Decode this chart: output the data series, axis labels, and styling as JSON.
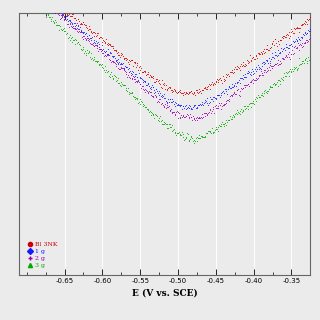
{
  "title": "",
  "xlabel": "E (V vs. SCE)",
  "xlim": [
    -0.71,
    -0.325
  ],
  "ylim_log": [
    -8.5,
    -1.0
  ],
  "x_ticks": [
    -0.65,
    -0.6,
    -0.55,
    -0.5,
    -0.45,
    -0.4,
    -0.35
  ],
  "background_color": "#ebebeb",
  "grid_color": "#ffffff",
  "legend_labels": [
    "Bl 3NK",
    "1 g",
    "2 g",
    "3 g"
  ],
  "legend_colors": [
    "#cc0000",
    "#1a1aff",
    "#9900aa",
    "#00aa00"
  ],
  "curves": [
    {
      "label": "Bl 3NK",
      "E_corr": -0.49,
      "log_icorr": -3.6,
      "ba": 0.068,
      "bc": 0.06,
      "color": "#cc0000"
    },
    {
      "label": "1 g",
      "E_corr": -0.488,
      "log_icorr": -4.0,
      "ba": 0.065,
      "bc": 0.056,
      "color": "#1a1aff"
    },
    {
      "label": "2 g",
      "E_corr": -0.485,
      "log_icorr": -4.3,
      "ba": 0.062,
      "bc": 0.053,
      "color": "#9900aa"
    },
    {
      "label": "3 g",
      "E_corr": -0.482,
      "log_icorr": -4.9,
      "ba": 0.059,
      "bc": 0.05,
      "color": "#00aa00"
    }
  ],
  "markers": [
    ".",
    ".",
    ".",
    "."
  ],
  "dot_size": 1.5,
  "n_points": 400,
  "noise": 0.05
}
